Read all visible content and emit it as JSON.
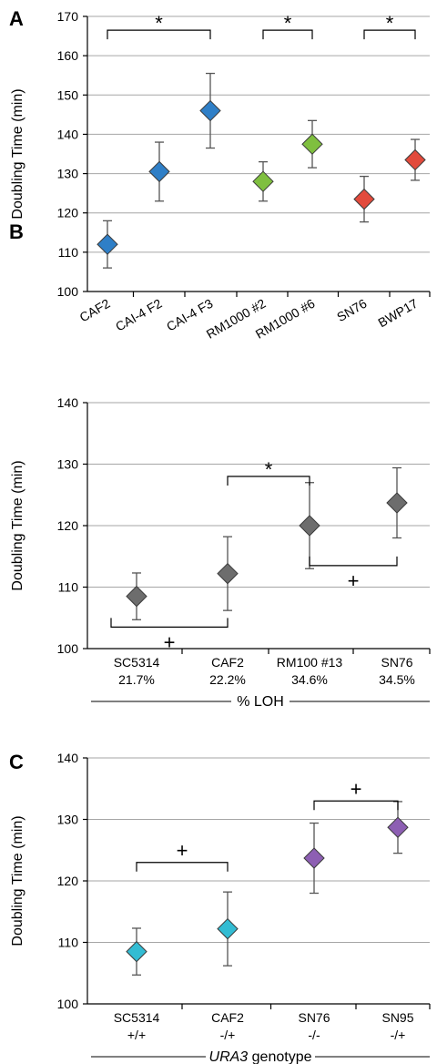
{
  "chart_data": [
    {
      "panel": "A",
      "type": "scatter",
      "ylabel": "Doubling Time (min)",
      "ylim": [
        100,
        170
      ],
      "yticks": [
        100,
        110,
        120,
        130,
        140,
        150,
        160,
        170
      ],
      "grid": true,
      "categories": [
        "CAF2",
        "CAI-4 F2",
        "CAI-4 F3",
        "RM1000 #2",
        "RM1000 #6",
        "SN76",
        "BWP17"
      ],
      "values": [
        112,
        130.5,
        146,
        128,
        137.5,
        123.5,
        133.5
      ],
      "errors": [
        6,
        7.5,
        9.5,
        5,
        6,
        5.8,
        5.2
      ],
      "colors": [
        "#2f7fc7",
        "#2f7fc7",
        "#2f7fc7",
        "#7fbf3f",
        "#7fbf3f",
        "#e24a3c",
        "#e24a3c"
      ],
      "rotated_labels": true,
      "brackets": [
        {
          "from": 0,
          "to": 2,
          "y": 166.5,
          "label": "*",
          "side": "above"
        },
        {
          "from": 3,
          "to": 4,
          "y": 166.5,
          "label": "*",
          "side": "above"
        },
        {
          "from": 5,
          "to": 6,
          "y": 166.5,
          "label": "*",
          "side": "above"
        }
      ]
    },
    {
      "panel": "B",
      "type": "scatter",
      "ylabel": "Doubling Time (min)",
      "ylim": [
        100,
        140
      ],
      "yticks": [
        100,
        110,
        120,
        130,
        140
      ],
      "grid": true,
      "categories": [
        "SC5314",
        "CAF2",
        "RM100 #13",
        "SN76"
      ],
      "sublabels": [
        "21.7%",
        "22.2%",
        "34.6%",
        "34.5%"
      ],
      "group_label": "% LOH",
      "values": [
        108.5,
        112.2,
        120,
        123.7
      ],
      "errors": [
        3.8,
        6,
        7,
        5.7
      ],
      "colors": [
        "#6d6d6d",
        "#6d6d6d",
        "#6d6d6d",
        "#6d6d6d"
      ],
      "rotated_labels": false,
      "brackets": [
        {
          "from": 1,
          "to": 2,
          "y": 128,
          "label": "*",
          "side": "above"
        },
        {
          "from": 2,
          "to": 3,
          "y": 113.5,
          "label": "+",
          "side": "below"
        },
        {
          "from": 0,
          "to": 1,
          "y": 103.5,
          "label": "+",
          "side": "below"
        }
      ]
    },
    {
      "panel": "C",
      "type": "scatter",
      "ylabel": "Doubling Time (min)",
      "ylim": [
        100,
        140
      ],
      "yticks": [
        100,
        110,
        120,
        130,
        140
      ],
      "grid": true,
      "categories": [
        "SC5314",
        "CAF2",
        "SN76",
        "SN95"
      ],
      "sublabels": [
        "+/+",
        "-/+",
        "-/-",
        "-/+"
      ],
      "group_label": "URA3",
      "group_label_suffix": " genotype",
      "values": [
        108.5,
        112.2,
        123.7,
        128.7
      ],
      "errors": [
        3.8,
        6,
        5.7,
        4.2
      ],
      "colors": [
        "#33bcd3",
        "#33bcd3",
        "#8d5fb3",
        "#8d5fb3"
      ],
      "rotated_labels": false,
      "brackets": [
        {
          "from": 0,
          "to": 1,
          "y": 123,
          "label": "+",
          "side": "above"
        },
        {
          "from": 2,
          "to": 3,
          "y": 133,
          "label": "+",
          "side": "above"
        }
      ]
    }
  ]
}
